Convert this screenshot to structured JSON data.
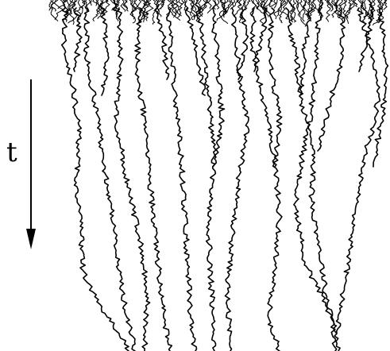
{
  "axis": {
    "label": "t",
    "direction": "down"
  },
  "colors": {
    "background": "#ffffff",
    "ink": "#000000"
  },
  "diagram": {
    "kind": "coalescing random walks",
    "description_visible": false
  }
}
